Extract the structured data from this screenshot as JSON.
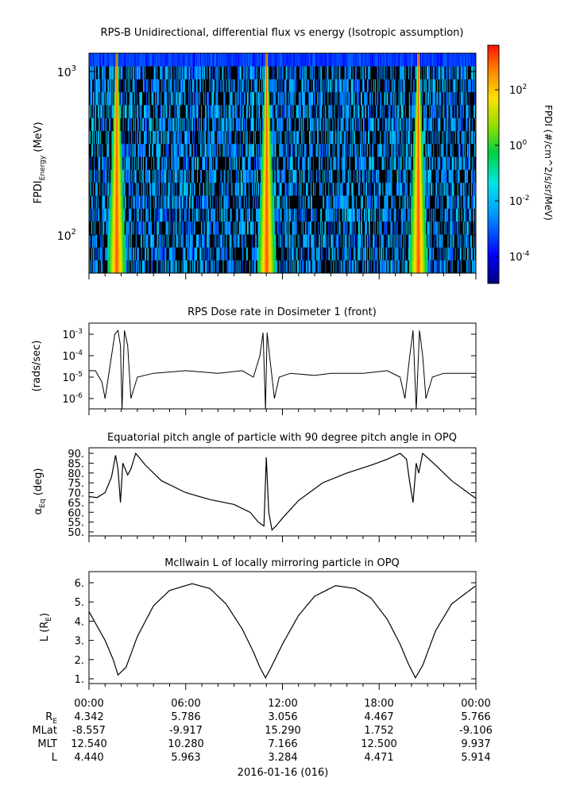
{
  "panels": {
    "spectrogram": {
      "title": "RPS-B  Unidirectional, differential flux vs energy (Isotropic assumption)",
      "ylabel_main": "FPDI",
      "ylabel_sub": "Energy",
      "ylabel_unit": " (MeV)",
      "yticks": [
        {
          "base": "10",
          "exp": "3"
        },
        {
          "base": "10",
          "exp": "2"
        }
      ],
      "colorbar_label": "FPDI (#/cm^2/s/sr/MeV)",
      "colorbar_ticks": [
        {
          "base": "10",
          "exp": "2"
        },
        {
          "base": "10",
          "exp": "0"
        },
        {
          "base": "10",
          "exp": "-2"
        },
        {
          "base": "10",
          "exp": "-4"
        }
      ]
    },
    "dose": {
      "title": "RPS  Dose rate in Dosimeter 1 (front)",
      "ylabel": "(rads/sec)",
      "yticks": [
        {
          "base": "10",
          "exp": "-3"
        },
        {
          "base": "10",
          "exp": "-4"
        },
        {
          "base": "10",
          "exp": "-5"
        },
        {
          "base": "10",
          "exp": "-6"
        }
      ]
    },
    "pitch": {
      "title": "Equatorial pitch angle of particle with 90 degree pitch angle in OPQ",
      "ylabel_main": "α",
      "ylabel_sub": "Eq",
      "ylabel_unit": " (deg)",
      "yticks": [
        "90.",
        "85.",
        "80.",
        "75.",
        "70.",
        "65.",
        "60.",
        "55.",
        "50."
      ]
    },
    "lshell": {
      "title": "McIlwain L of locally mirroring particle in OPQ",
      "ylabel_main": "L (R",
      "ylabel_sub": "E",
      "ylabel_end": ")",
      "yticks": [
        "6.",
        "5.",
        "4.",
        "3.",
        "2.",
        "1."
      ]
    }
  },
  "xaxis": {
    "tick_labels": [
      "00:00",
      "06:00",
      "12:00",
      "18:00",
      "00:00"
    ],
    "rows": [
      {
        "label_main": "R",
        "label_sub": "E",
        "values": [
          "4.342",
          "5.786",
          "3.056",
          "4.467",
          "5.766"
        ]
      },
      {
        "label_main": "MLat",
        "label_sub": "",
        "values": [
          "-8.557",
          "-9.917",
          "15.290",
          "1.752",
          "-9.106"
        ]
      },
      {
        "label_main": "MLT",
        "label_sub": "",
        "values": [
          "12.540",
          "10.280",
          "7.166",
          "12.500",
          "9.937"
        ]
      },
      {
        "label_main": "L",
        "label_sub": "",
        "values": [
          "4.440",
          "5.963",
          "3.284",
          "4.471",
          "5.914"
        ]
      }
    ],
    "date_label": "2016-01-16 (016)"
  },
  "chart_data": [
    {
      "type": "heatmap",
      "title": "RPS-B  Unidirectional, differential flux vs energy (Isotropic assumption)",
      "xlabel": "",
      "ylabel": "FPDI Energy (MeV)",
      "x_range_hours": [
        0,
        24
      ],
      "ylim": [
        55,
        1400
      ],
      "y_scale": "log",
      "colorbar_range": [
        1e-05,
        3000
      ],
      "colorbar_scale": "log",
      "colormap": "rainbow (blue to red)",
      "belt_passes_hours": [
        1.7,
        11.0,
        20.4
      ]
    },
    {
      "type": "line",
      "title": "RPS  Dose rate in Dosimeter 1 (front)",
      "ylabel": "(rads/sec)",
      "y_scale": "log",
      "ylim": [
        3e-07,
        0.003
      ],
      "x_hours": [
        0,
        0.4,
        0.8,
        1.0,
        1.4,
        1.6,
        1.8,
        1.95,
        2.05,
        2.2,
        2.4,
        2.6,
        3.0,
        4.0,
        6.0,
        8.0,
        9.5,
        10.2,
        10.6,
        10.8,
        10.95,
        11.05,
        11.2,
        11.5,
        11.8,
        12.5,
        14.0,
        15.0,
        17.0,
        18.5,
        19.3,
        19.6,
        19.9,
        20.1,
        20.3,
        20.5,
        20.7,
        20.9,
        21.3,
        22.0,
        24.0
      ],
      "values": [
        2e-05,
        2e-05,
        6e-06,
        1e-06,
        0.0001,
        0.001,
        0.0015,
        0.0003,
        3e-07,
        0.0015,
        0.0003,
        1e-06,
        1e-05,
        1.5e-05,
        2e-05,
        1.5e-05,
        2e-05,
        1e-05,
        0.0001,
        0.0012,
        3e-07,
        0.0012,
        0.0001,
        1e-06,
        1e-05,
        1.5e-05,
        1.2e-05,
        1.5e-05,
        1.5e-05,
        2e-05,
        1e-05,
        1e-06,
        0.0001,
        0.0015,
        3e-07,
        0.0015,
        0.0001,
        1e-06,
        1e-05,
        1.5e-05,
        1.5e-05
      ]
    },
    {
      "type": "line",
      "title": "Equatorial pitch angle of particle with 90 degree pitch angle in OPQ",
      "ylabel": "αEq (deg)",
      "ylim": [
        49,
        91
      ],
      "x_hours": [
        0,
        0.5,
        1.0,
        1.4,
        1.65,
        1.8,
        1.95,
        2.1,
        2.4,
        2.6,
        2.9,
        3.5,
        4.5,
        6.0,
        7.5,
        9.0,
        10.0,
        10.5,
        10.85,
        11.0,
        11.15,
        11.35,
        11.6,
        12.0,
        13.0,
        14.5,
        16.0,
        17.5,
        18.5,
        19.3,
        19.7,
        19.9,
        20.1,
        20.3,
        20.45,
        20.7,
        21.5,
        22.5,
        24.0
      ],
      "values": [
        68,
        67.5,
        70,
        78,
        89,
        82,
        65,
        85,
        79,
        82,
        90,
        84,
        76,
        70,
        66.5,
        64,
        60,
        55,
        53,
        88,
        60,
        51,
        53,
        57,
        66,
        75,
        80,
        84,
        87,
        90,
        87,
        75,
        65,
        85,
        80,
        90,
        84,
        76,
        67
      ]
    },
    {
      "type": "line",
      "title": "McIlwain L of locally mirroring particle in OPQ",
      "ylabel": "L (RE)",
      "ylim": [
        0.8,
        6.4
      ],
      "x_hours": [
        0,
        1.0,
        1.5,
        1.8,
        2.3,
        3.0,
        4.0,
        5.0,
        6.4,
        7.5,
        8.5,
        9.5,
        10.2,
        10.6,
        10.95,
        11.3,
        12.0,
        13.0,
        14.0,
        15.3,
        16.5,
        17.5,
        18.5,
        19.3,
        19.8,
        20.25,
        20.7,
        21.5,
        22.5,
        24.0
      ],
      "values": [
        4.5,
        3.0,
        2.0,
        1.2,
        1.6,
        3.2,
        4.8,
        5.6,
        5.95,
        5.7,
        4.9,
        3.6,
        2.4,
        1.6,
        1.05,
        1.6,
        2.8,
        4.3,
        5.3,
        5.85,
        5.7,
        5.2,
        4.1,
        2.8,
        1.8,
        1.05,
        1.7,
        3.5,
        4.9,
        5.85
      ]
    }
  ]
}
